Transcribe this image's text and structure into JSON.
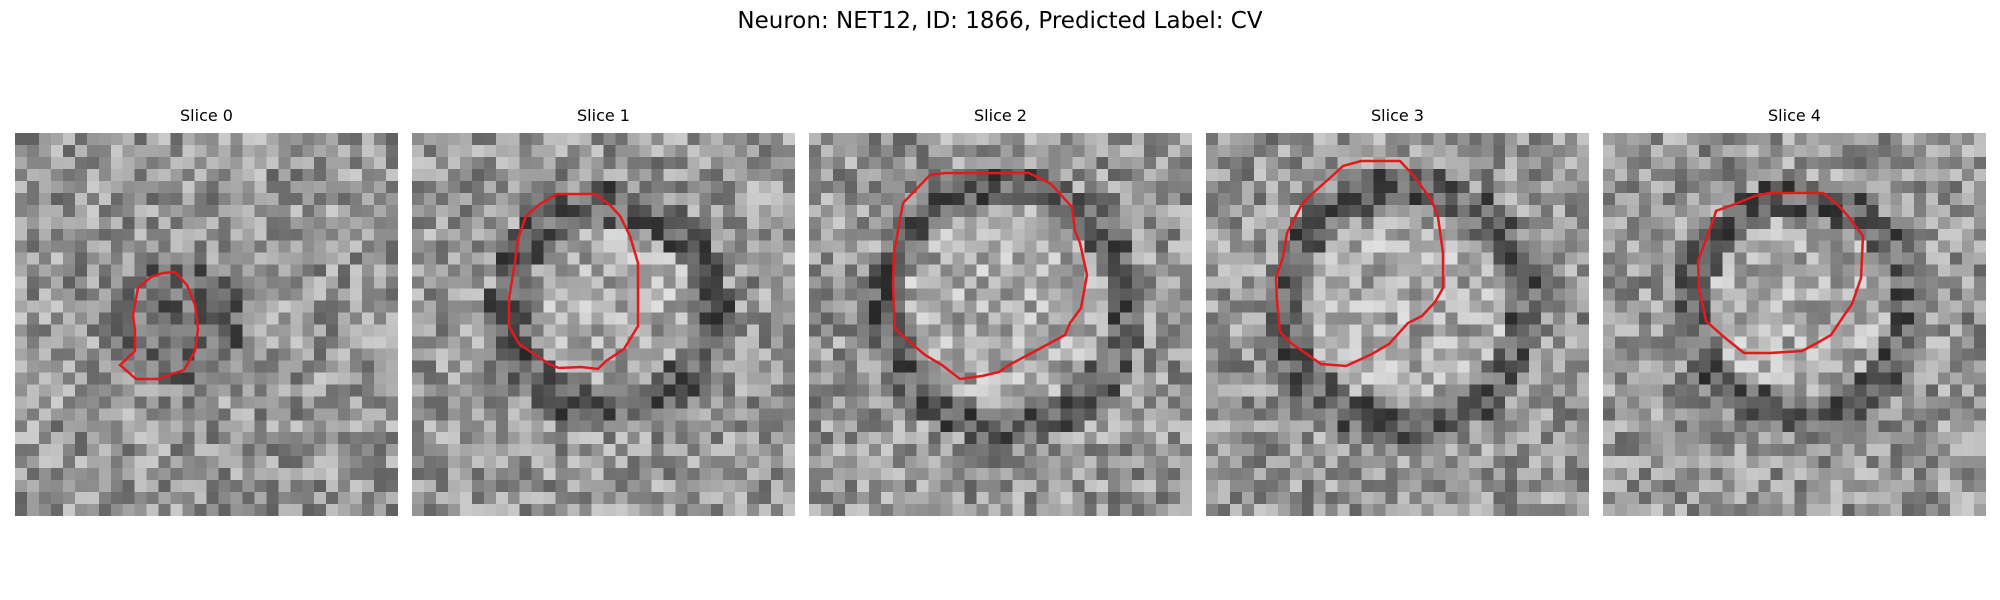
{
  "figure": {
    "title": "Neuron: NET12, ID: 1866, Predicted Label: CV"
  },
  "panels": [
    {
      "title": "Slice 0"
    },
    {
      "title": "Slice 1"
    },
    {
      "title": "Slice 2"
    },
    {
      "title": "Slice 3"
    },
    {
      "title": "Slice 4"
    }
  ],
  "colors": {
    "contour": "#e31a1c",
    "colormap": "grayscale"
  }
}
